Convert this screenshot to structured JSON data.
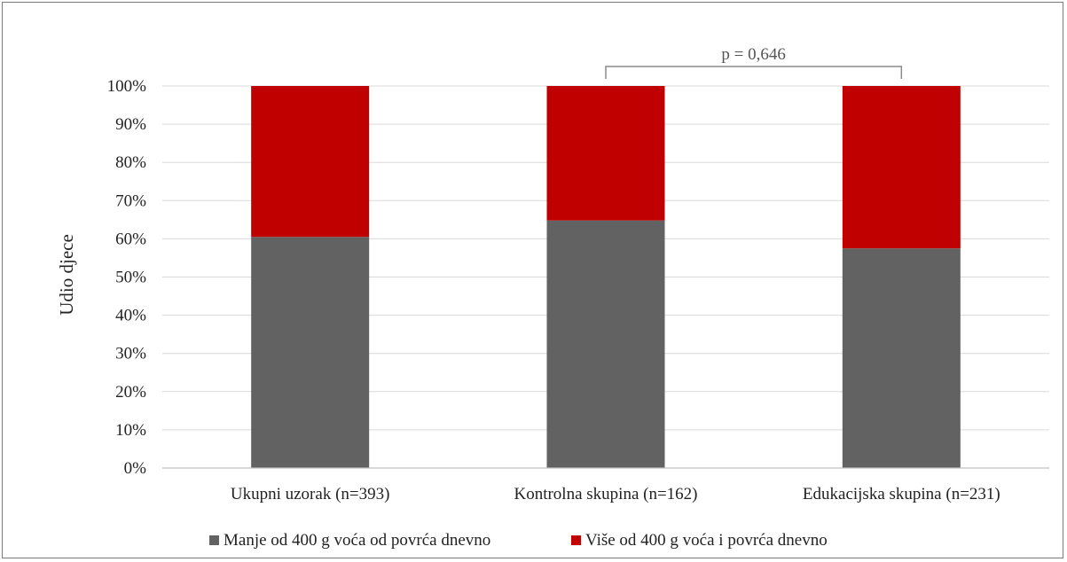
{
  "chart_data": {
    "type": "bar",
    "stacked": true,
    "categories": [
      "Ukupni uzorak (n=393)",
      "Kontrolna skupina (n=162)",
      "Edukacijska skupina (n=231)"
    ],
    "series": [
      {
        "name": "Manje od 400 g voća od povrća dnevno",
        "values": [
          60.5,
          64.8,
          57.5
        ],
        "color": "#626262"
      },
      {
        "name": "Više od 400 g voća i povrća dnevno",
        "values": [
          39.5,
          35.2,
          42.5
        ],
        "color": "#c00000"
      }
    ],
    "ylabel": "Udio djece",
    "xlabel": "",
    "ylim": [
      0,
      100
    ],
    "yticks": [
      "0%",
      "10%",
      "20%",
      "30%",
      "40%",
      "50%",
      "60%",
      "70%",
      "80%",
      "90%",
      "100%"
    ],
    "grid": true,
    "legend_position": "bottom",
    "annotation": {
      "text": "p = 0,646",
      "between": [
        1,
        2
      ]
    }
  }
}
